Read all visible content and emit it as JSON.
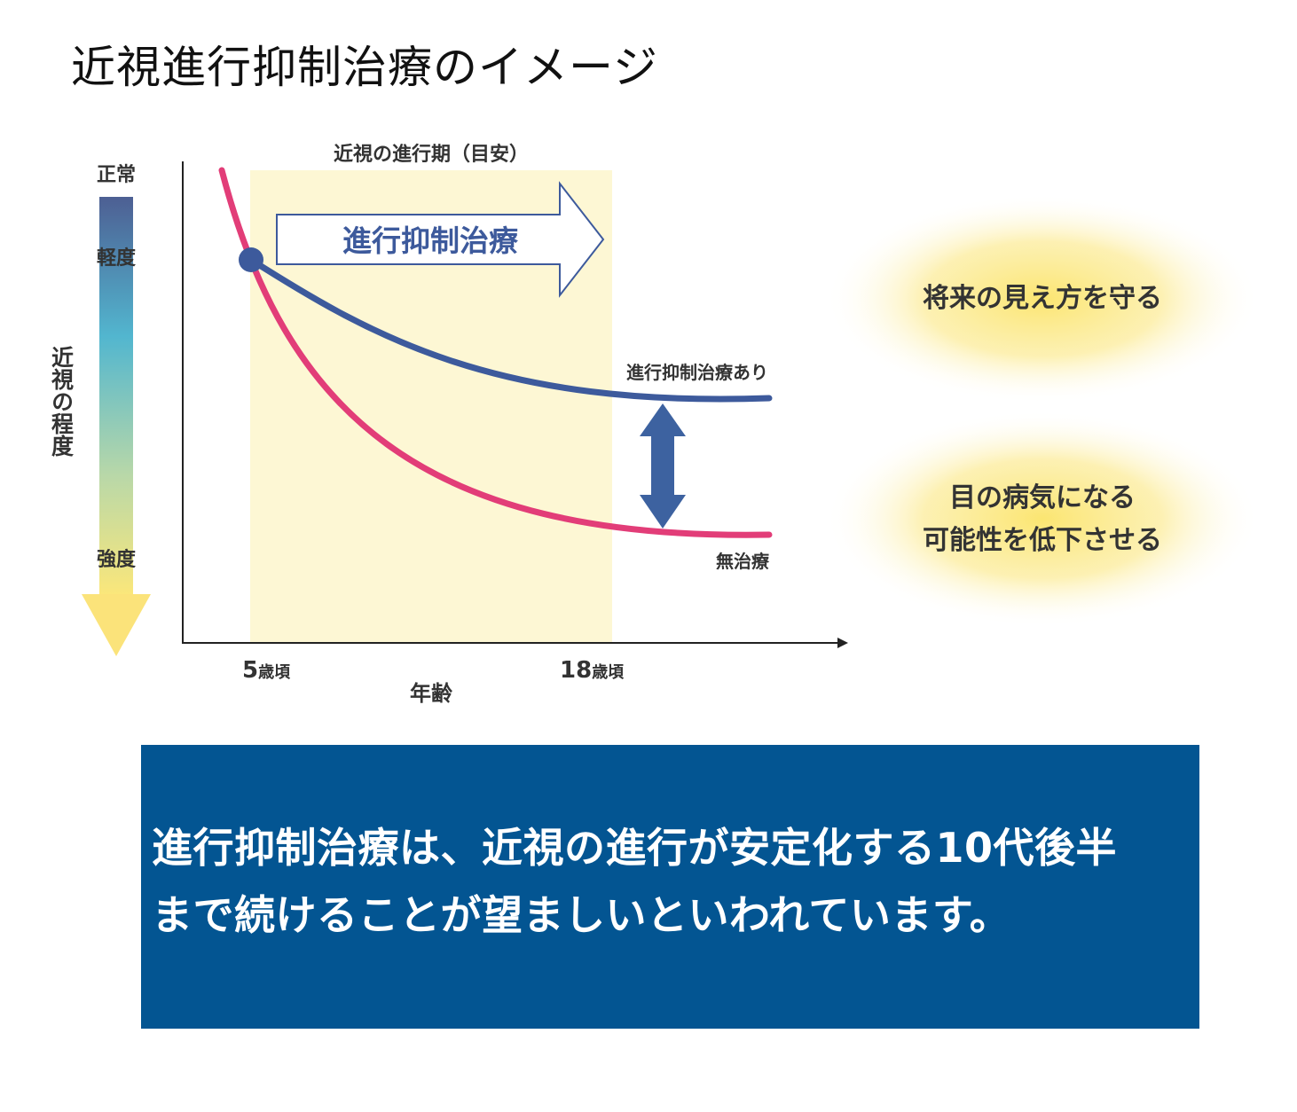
{
  "page": {
    "title": "近視進行抑制治療のイメージ"
  },
  "diagram": {
    "period_label": "近視の進行期（目安）",
    "treatment_arrow_label": "進行抑制治療",
    "severity_scale": {
      "axis_label": "近視の程度",
      "levels": [
        "正常",
        "軽度",
        "強度"
      ]
    },
    "x_axis": {
      "label": "年齢",
      "ticks": [
        {
          "number": "5",
          "unit": "歳頃"
        },
        {
          "number": "18",
          "unit": "歳頃"
        }
      ]
    },
    "curves": {
      "with_treatment": {
        "label": "進行抑制治療あり",
        "color": "#3d5a9c"
      },
      "no_treatment": {
        "label": "無治療",
        "color": "#e23d78"
      }
    },
    "benefits": [
      {
        "lines": [
          "将来の見え方を守る"
        ]
      },
      {
        "lines": [
          "目の病気になる",
          "可能性を低下させる"
        ]
      }
    ],
    "colors": {
      "period_band": "#fdf7d4",
      "arrow_outline": "#3d5a9c",
      "diff_arrow": "#3d62a0",
      "glow": "#fbe98a"
    }
  },
  "info_box": {
    "lines": [
      "進行抑制治療は、近視の進行が安定化する10代後半",
      "まで続けることが望ましいといわれています。"
    ],
    "background": "#035592"
  }
}
